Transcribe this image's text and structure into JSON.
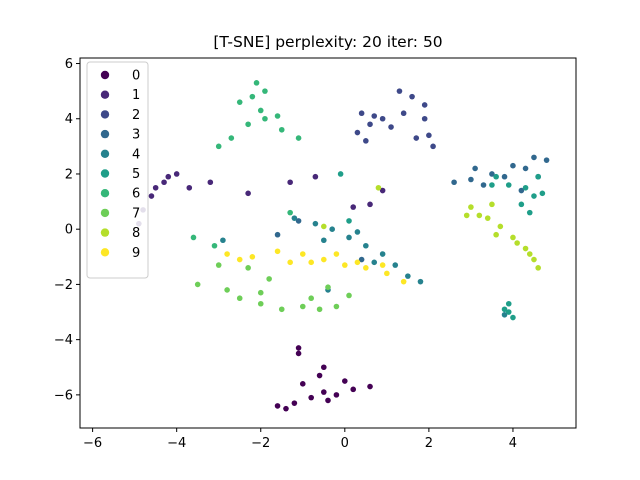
{
  "chart_data": {
    "type": "scatter",
    "title": "[T-SNE] perplexity: 20 iter: 50",
    "xlabel": "",
    "ylabel": "",
    "xlim": [
      -6.3,
      5.5
    ],
    "ylim": [
      -7.2,
      6.2
    ],
    "xticks": [
      -6,
      -4,
      -2,
      0,
      2,
      4
    ],
    "yticks": [
      -6,
      -4,
      -2,
      0,
      2,
      4,
      6
    ],
    "xtick_labels": [
      "−6",
      "−4",
      "−2",
      "0",
      "2",
      "4"
    ],
    "ytick_labels": [
      "−6",
      "−4",
      "−2",
      "0",
      "2",
      "4",
      "6"
    ],
    "grid": false,
    "legend_position": "upper-left",
    "series": [
      {
        "name": "0",
        "color": "#440154",
        "approx_points": [
          [
            -1.6,
            -6.4
          ],
          [
            -1.2,
            -6.3
          ],
          [
            -0.8,
            -6.1
          ],
          [
            -0.5,
            -5.9
          ],
          [
            -0.2,
            -6.0
          ],
          [
            0.2,
            -5.8
          ],
          [
            0.6,
            -5.7
          ],
          [
            -1.0,
            -5.6
          ],
          [
            -0.6,
            -5.3
          ],
          [
            -0.5,
            -5.0
          ],
          [
            -1.1,
            -4.5
          ],
          [
            -1.1,
            -4.3
          ],
          [
            -1.4,
            -6.5
          ],
          [
            -0.4,
            -6.2
          ],
          [
            0.0,
            -5.5
          ]
        ]
      },
      {
        "name": "1",
        "color": "#482878",
        "approx_points": [
          [
            -4.0,
            2.0
          ],
          [
            -4.3,
            1.7
          ],
          [
            -4.6,
            1.2
          ],
          [
            -4.8,
            0.7
          ],
          [
            -4.9,
            0.2
          ],
          [
            -4.5,
            1.5
          ],
          [
            -3.7,
            1.5
          ],
          [
            -3.2,
            1.7
          ],
          [
            -2.3,
            1.3
          ],
          [
            0.9,
            1.4
          ],
          [
            -0.7,
            1.9
          ],
          [
            -1.3,
            1.7
          ],
          [
            0.2,
            0.8
          ],
          [
            0.6,
            0.9
          ],
          [
            -4.2,
            1.9
          ]
        ]
      },
      {
        "name": "2",
        "color": "#3e4989",
        "approx_points": [
          [
            1.3,
            5.0
          ],
          [
            1.6,
            4.8
          ],
          [
            1.9,
            4.5
          ],
          [
            1.4,
            4.2
          ],
          [
            0.9,
            4.0
          ],
          [
            0.6,
            3.8
          ],
          [
            0.3,
            3.5
          ],
          [
            0.5,
            3.2
          ],
          [
            1.7,
            3.3
          ],
          [
            2.0,
            3.4
          ],
          [
            2.1,
            3.0
          ],
          [
            0.7,
            4.1
          ],
          [
            0.4,
            4.2
          ],
          [
            1.1,
            3.7
          ],
          [
            1.9,
            4.0
          ]
        ]
      },
      {
        "name": "3",
        "color": "#31688e",
        "approx_points": [
          [
            3.0,
            1.8
          ],
          [
            3.5,
            2.0
          ],
          [
            4.0,
            2.3
          ],
          [
            4.5,
            2.6
          ],
          [
            4.8,
            2.5
          ],
          [
            3.3,
            1.6
          ],
          [
            3.8,
            1.9
          ],
          [
            4.3,
            2.2
          ],
          [
            2.6,
            1.7
          ],
          [
            3.1,
            2.2
          ],
          [
            4.6,
            1.9
          ],
          [
            4.2,
            1.4
          ],
          [
            0.4,
            -1.1
          ],
          [
            -1.1,
            0.3
          ],
          [
            -1.6,
            -0.2
          ]
        ]
      },
      {
        "name": "4",
        "color": "#26828e",
        "approx_points": [
          [
            -1.2,
            0.4
          ],
          [
            -0.7,
            0.2
          ],
          [
            -0.3,
            0.0
          ],
          [
            0.1,
            -0.3
          ],
          [
            0.5,
            -0.6
          ],
          [
            0.9,
            -0.9
          ],
          [
            1.2,
            -1.3
          ],
          [
            1.5,
            -1.7
          ],
          [
            1.8,
            -1.9
          ],
          [
            0.3,
            -0.1
          ],
          [
            -0.5,
            -0.4
          ],
          [
            0.7,
            -1.2
          ],
          [
            -0.4,
            -2.2
          ],
          [
            -2.9,
            -0.4
          ],
          [
            3.8,
            -3.1
          ]
        ]
      },
      {
        "name": "5",
        "color": "#1f9e89",
        "approx_points": [
          [
            3.9,
            -3.0
          ],
          [
            4.0,
            -3.2
          ],
          [
            3.8,
            -2.9
          ],
          [
            4.3,
            1.5
          ],
          [
            4.5,
            1.2
          ],
          [
            4.6,
            1.9
          ],
          [
            3.6,
            1.9
          ],
          [
            3.9,
            1.6
          ],
          [
            4.4,
            0.6
          ],
          [
            4.2,
            0.9
          ],
          [
            4.7,
            1.3
          ],
          [
            3.5,
            1.6
          ],
          [
            0.1,
            0.3
          ],
          [
            -0.1,
            2.0
          ],
          [
            3.9,
            -2.7
          ]
        ]
      },
      {
        "name": "6",
        "color": "#35b779",
        "approx_points": [
          [
            -2.1,
            5.3
          ],
          [
            -2.2,
            4.8
          ],
          [
            -2.0,
            4.3
          ],
          [
            -1.9,
            4.0
          ],
          [
            -2.5,
            4.6
          ],
          [
            -2.3,
            3.8
          ],
          [
            -1.6,
            4.1
          ],
          [
            -1.5,
            3.6
          ],
          [
            -2.7,
            3.3
          ],
          [
            -3.0,
            3.0
          ],
          [
            -1.1,
            3.3
          ],
          [
            -1.3,
            0.6
          ],
          [
            -3.1,
            -0.6
          ],
          [
            -3.6,
            -0.3
          ],
          [
            -1.9,
            5.0
          ]
        ]
      },
      {
        "name": "7",
        "color": "#6ece58",
        "approx_points": [
          [
            -3.0,
            -1.3
          ],
          [
            -2.8,
            -2.2
          ],
          [
            -2.5,
            -2.5
          ],
          [
            -2.0,
            -2.7
          ],
          [
            -1.5,
            -2.9
          ],
          [
            -1.0,
            -2.8
          ],
          [
            -0.6,
            -2.9
          ],
          [
            -0.2,
            -2.8
          ],
          [
            0.1,
            -2.4
          ],
          [
            -0.4,
            -2.1
          ],
          [
            -1.8,
            -1.8
          ],
          [
            -2.3,
            -1.4
          ],
          [
            -0.8,
            -2.5
          ],
          [
            -3.5,
            -2.0
          ],
          [
            -2.0,
            -2.3
          ]
        ]
      },
      {
        "name": "8",
        "color": "#b5de2b",
        "approx_points": [
          [
            3.0,
            0.8
          ],
          [
            3.4,
            0.4
          ],
          [
            3.7,
            0.1
          ],
          [
            4.0,
            -0.3
          ],
          [
            4.3,
            -0.7
          ],
          [
            4.5,
            -1.1
          ],
          [
            4.6,
            -1.4
          ],
          [
            3.5,
            0.9
          ],
          [
            3.2,
            0.5
          ],
          [
            4.1,
            -0.5
          ],
          [
            4.4,
            -0.9
          ],
          [
            2.9,
            0.5
          ],
          [
            -0.5,
            0.1
          ],
          [
            0.8,
            1.5
          ],
          [
            3.6,
            -0.2
          ]
        ]
      },
      {
        "name": "9",
        "color": "#fde725",
        "approx_points": [
          [
            -2.8,
            -0.9
          ],
          [
            -2.2,
            -1.0
          ],
          [
            -1.6,
            -0.8
          ],
          [
            -1.0,
            -0.9
          ],
          [
            -0.5,
            -1.1
          ],
          [
            0.0,
            -1.3
          ],
          [
            0.5,
            -1.4
          ],
          [
            1.0,
            -1.6
          ],
          [
            1.4,
            -1.9
          ],
          [
            -0.8,
            -1.2
          ],
          [
            -0.2,
            -0.9
          ],
          [
            0.3,
            -1.2
          ],
          [
            -1.3,
            -1.2
          ],
          [
            -2.5,
            -1.1
          ],
          [
            0.9,
            -1.3
          ]
        ]
      }
    ]
  }
}
